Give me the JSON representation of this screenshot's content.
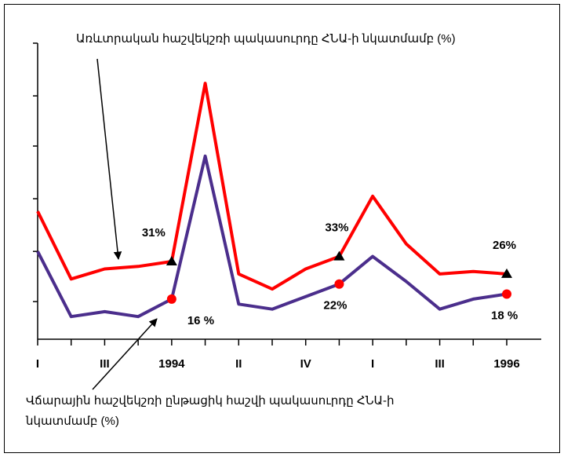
{
  "chart_data": {
    "type": "line",
    "categories": [
      "I",
      null,
      "III",
      null,
      "1994",
      null,
      "II",
      null,
      "IV",
      null,
      "I",
      null,
      "III",
      null,
      "1996"
    ],
    "series": [
      {
        "name": "Առևտրական հաշվեկշռի պակասուրդը ՀՆԱ-ի նկատմամբ (%)",
        "color": "#ff0000",
        "marker_color": "#000000",
        "values": [
          51,
          24,
          28,
          29,
          31,
          102,
          26,
          20,
          28,
          33,
          57,
          38,
          26,
          27,
          26
        ],
        "value_labels": [
          null,
          null,
          null,
          null,
          "31%",
          null,
          null,
          null,
          null,
          "33%",
          null,
          null,
          null,
          null,
          "26%"
        ]
      },
      {
        "name": "Վճարային հաշվեկշռի ընթացիկ հաշվի պակասուրդը ՀՆԱ-ի նկատմամբ (%)",
        "color": "#4b2e8c",
        "marker_color": "#ff0000",
        "values": [
          35,
          9,
          11,
          9,
          16,
          73,
          14,
          12,
          17,
          22,
          33,
          23,
          12,
          16,
          18
        ],
        "value_labels": [
          null,
          null,
          null,
          null,
          "16 %",
          null,
          null,
          null,
          null,
          "22%",
          null,
          null,
          null,
          null,
          "18 %"
        ]
      }
    ],
    "ylim": [
      0,
      118
    ],
    "yticks": [
      15,
      35,
      56,
      77,
      97,
      118
    ],
    "grid": false
  }
}
